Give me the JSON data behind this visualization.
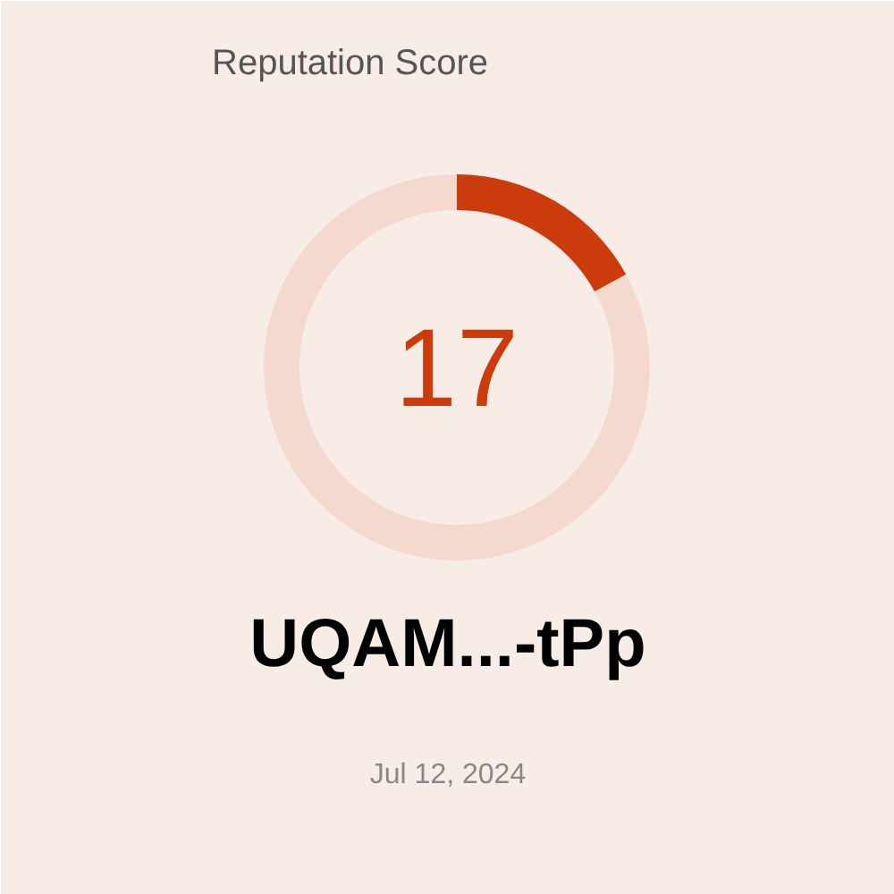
{
  "chart_data": {
    "type": "donut",
    "title": "Reputation Score",
    "categories": [
      null,
      null
    ],
    "values": [
      17,
      83
    ],
    "colors": [
      "#cc3b0b",
      "#f5d9ce"
    ],
    "annotations": [
      "17",
      "UQAM...-tPp",
      "Jul 12, 2024"
    ]
  }
}
